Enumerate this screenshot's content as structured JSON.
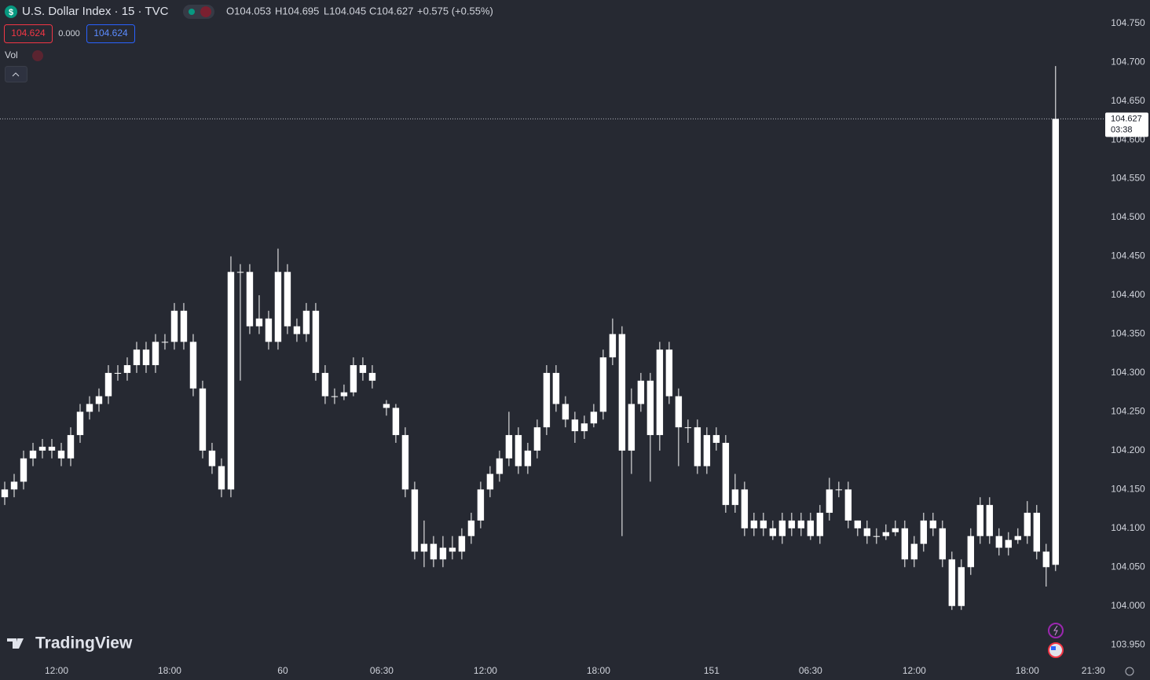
{
  "header": {
    "symbol": "U.S. Dollar Index · 15 · TVC",
    "ohlc": [
      "O104.053",
      "H104.695",
      "L104.045",
      "C104.627"
    ],
    "change": "+0.575 (+0.55%)",
    "bid": "104.624",
    "spread": "0.000",
    "ask": "104.624",
    "volume_label": "Vol"
  },
  "logo": "TradingView",
  "chart_data": {
    "type": "candlestick",
    "color": "#ffffff",
    "grid": false,
    "xlim": [
      0,
      234.2
    ],
    "ylim": [
      103.93,
      104.78
    ],
    "xticks": [
      {
        "value": 12,
        "label": "12:00"
      },
      {
        "value": 36,
        "label": "18:00"
      },
      60,
      {
        "value": 81,
        "label": "06:30"
      },
      {
        "value": 103,
        "label": "12:00"
      },
      {
        "value": 127,
        "label": "18:00"
      },
      151,
      {
        "value": 172,
        "label": "06:30"
      },
      {
        "value": 194,
        "label": "12:00"
      },
      {
        "value": 218,
        "label": "18:00"
      },
      {
        "value": 232,
        "label": "21:30"
      }
    ],
    "yticks": [
      {
        "value": 103.95,
        "label": "103.950"
      },
      {
        "value": 104,
        "label": "104.000"
      },
      {
        "value": 104.05,
        "label": "104.050"
      },
      {
        "value": 104.1,
        "label": "104.100"
      },
      {
        "value": 104.15,
        "label": "104.150"
      },
      {
        "value": 104.2,
        "label": "104.200"
      },
      {
        "value": 104.25,
        "label": "104.250"
      },
      {
        "value": 104.3,
        "label": "104.300"
      },
      {
        "value": 104.35,
        "label": "104.350"
      },
      {
        "value": 104.4,
        "label": "104.400"
      },
      {
        "value": 104.45,
        "label": "104.450"
      },
      {
        "value": 104.5,
        "label": "104.500"
      },
      {
        "value": 104.55,
        "label": "104.550"
      },
      {
        "value": 104.6,
        "label": "104.600"
      },
      {
        "value": 104.65,
        "label": "104.650"
      },
      {
        "value": 104.7,
        "label": "104.700"
      },
      {
        "value": 104.75,
        "label": "104.750"
      }
    ],
    "last_price": {
      "value": 104.627,
      "countdown": "03:38"
    },
    "x": [
      1,
      3,
      5,
      7,
      9,
      11,
      13,
      15,
      17,
      19,
      21,
      23,
      25,
      27,
      29,
      31,
      33,
      35,
      37,
      39,
      41,
      43,
      45,
      47,
      49,
      51,
      53,
      55,
      57,
      59,
      61,
      63,
      65,
      67,
      69,
      71,
      73,
      75,
      77,
      79,
      82,
      84,
      86,
      88,
      90,
      92,
      94,
      96,
      98,
      100,
      102,
      104,
      106,
      108,
      110,
      112,
      114,
      116,
      118,
      120,
      122,
      124,
      126,
      128,
      130,
      132,
      134,
      136,
      138,
      140,
      142,
      144,
      146,
      148,
      150,
      152,
      154,
      156,
      158,
      160,
      162,
      164,
      166,
      168,
      170,
      172,
      174,
      176,
      178,
      180,
      182,
      184,
      186,
      188,
      190,
      192,
      194,
      196,
      198,
      200,
      202,
      204,
      206,
      208,
      210,
      212,
      214,
      216,
      218,
      220,
      222,
      224
    ],
    "open": [
      104.14,
      104.15,
      104.16,
      104.19,
      104.2,
      104.205,
      104.2,
      104.19,
      104.22,
      104.25,
      104.26,
      104.27,
      104.3,
      104.3,
      104.31,
      104.33,
      104.31,
      104.34,
      104.34,
      104.38,
      104.34,
      104.28,
      104.2,
      104.18,
      104.15,
      104.43,
      104.43,
      104.36,
      104.37,
      104.34,
      104.43,
      104.36,
      104.35,
      104.38,
      104.3,
      104.27,
      104.27,
      104.275,
      104.31,
      104.3,
      104.26,
      104.255,
      104.22,
      104.15,
      104.07,
      104.08,
      104.06,
      104.075,
      104.07,
      104.09,
      104.11,
      104.15,
      104.17,
      104.19,
      104.22,
      104.18,
      104.2,
      104.23,
      104.3,
      104.26,
      104.24,
      104.225,
      104.235,
      104.25,
      104.32,
      104.35,
      104.2,
      104.26,
      104.29,
      104.22,
      104.33,
      104.27,
      104.23,
      104.23,
      104.18,
      104.22,
      104.21,
      104.13,
      104.15,
      104.1,
      104.11,
      104.1,
      104.09,
      104.11,
      104.1,
      104.11,
      104.09,
      104.12,
      104.15,
      104.15,
      104.11,
      104.1,
      104.09,
      104.09,
      104.095,
      104.1,
      104.06,
      104.08,
      104.11,
      104.1,
      104.06,
      104,
      104.05,
      104.09,
      104.13,
      104.09,
      104.075,
      104.085,
      104.09,
      104.12,
      104.07,
      104.053
    ],
    "high": [
      104.16,
      104.17,
      104.2,
      104.21,
      104.215,
      104.215,
      104.21,
      104.23,
      104.26,
      104.27,
      104.28,
      104.31,
      104.31,
      104.32,
      104.34,
      104.34,
      104.35,
      104.35,
      104.39,
      104.39,
      104.35,
      104.29,
      104.21,
      104.19,
      104.45,
      104.44,
      104.44,
      104.4,
      104.38,
      104.46,
      104.44,
      104.37,
      104.39,
      104.39,
      104.31,
      104.28,
      104.285,
      104.32,
      104.32,
      104.31,
      104.265,
      104.26,
      104.23,
      104.16,
      104.11,
      104.09,
      104.09,
      104.09,
      104.1,
      104.12,
      104.16,
      104.18,
      104.2,
      104.25,
      104.23,
      104.21,
      104.24,
      104.31,
      104.31,
      104.27,
      104.25,
      104.245,
      104.26,
      104.33,
      104.37,
      104.36,
      104.28,
      104.3,
      104.3,
      104.34,
      104.34,
      104.28,
      104.24,
      104.24,
      104.23,
      104.23,
      104.22,
      104.17,
      104.16,
      104.12,
      104.12,
      104.11,
      104.12,
      104.12,
      104.12,
      104.12,
      104.13,
      104.165,
      104.16,
      104.16,
      104.11,
      104.11,
      104.1,
      104.105,
      104.11,
      104.11,
      104.09,
      104.12,
      104.12,
      104.11,
      104.07,
      104.06,
      104.1,
      104.14,
      104.14,
      104.1,
      104.095,
      104.1,
      104.135,
      104.13,
      104.08,
      104.695
    ],
    "low": [
      104.13,
      104.14,
      104.15,
      104.18,
      104.19,
      104.19,
      104.18,
      104.18,
      104.21,
      104.24,
      104.25,
      104.26,
      104.29,
      104.29,
      104.3,
      104.3,
      104.3,
      104.33,
      104.33,
      104.33,
      104.27,
      104.19,
      104.17,
      104.14,
      104.14,
      104.29,
      104.35,
      104.35,
      104.33,
      104.33,
      104.35,
      104.34,
      104.34,
      104.29,
      104.26,
      104.26,
      104.265,
      104.27,
      104.29,
      104.28,
      104.245,
      104.21,
      104.14,
      104.06,
      104.05,
      104.05,
      104.05,
      104.06,
      104.06,
      104.08,
      104.1,
      104.14,
      104.16,
      104.18,
      104.17,
      104.17,
      104.19,
      104.22,
      104.25,
      104.23,
      104.21,
      104.215,
      104.23,
      104.24,
      104.31,
      104.09,
      104.17,
      104.25,
      104.16,
      104.2,
      104.26,
      104.18,
      104.21,
      104.17,
      104.17,
      104.2,
      104.12,
      104.12,
      104.09,
      104.09,
      104.09,
      104.085,
      104.08,
      104.09,
      104.09,
      104.085,
      104.08,
      104.11,
      104.14,
      104.1,
      104.09,
      104.08,
      104.08,
      104.085,
      104.09,
      104.05,
      104.05,
      104.07,
      104.09,
      104.05,
      103.995,
      103.995,
      104.04,
      104.08,
      104.08,
      104.065,
      104.065,
      104.08,
      104.08,
      104.06,
      104.025,
      104.045
    ],
    "close": [
      104.15,
      104.16,
      104.19,
      104.2,
      104.205,
      104.2,
      104.19,
      104.22,
      104.25,
      104.26,
      104.27,
      104.3,
      104.3,
      104.31,
      104.33,
      104.31,
      104.34,
      104.34,
      104.38,
      104.34,
      104.28,
      104.2,
      104.18,
      104.15,
      104.43,
      104.43,
      104.36,
      104.37,
      104.34,
      104.43,
      104.36,
      104.35,
      104.38,
      104.3,
      104.27,
      104.27,
      104.275,
      104.31,
      104.3,
      104.29,
      104.255,
      104.22,
      104.15,
      104.07,
      104.08,
      104.06,
      104.075,
      104.07,
      104.09,
      104.11,
      104.15,
      104.17,
      104.19,
      104.22,
      104.18,
      104.2,
      104.23,
      104.3,
      104.26,
      104.24,
      104.225,
      104.235,
      104.25,
      104.32,
      104.35,
      104.2,
      104.26,
      104.29,
      104.22,
      104.33,
      104.27,
      104.23,
      104.23,
      104.18,
      104.22,
      104.21,
      104.13,
      104.15,
      104.1,
      104.11,
      104.1,
      104.09,
      104.11,
      104.1,
      104.11,
      104.09,
      104.12,
      104.15,
      104.15,
      104.11,
      104.1,
      104.09,
      104.09,
      104.095,
      104.1,
      104.06,
      104.08,
      104.11,
      104.1,
      104.06,
      104,
      104.05,
      104.09,
      104.13,
      104.09,
      104.075,
      104.085,
      104.09,
      104.12,
      104.07,
      104.05,
      104.627
    ]
  }
}
